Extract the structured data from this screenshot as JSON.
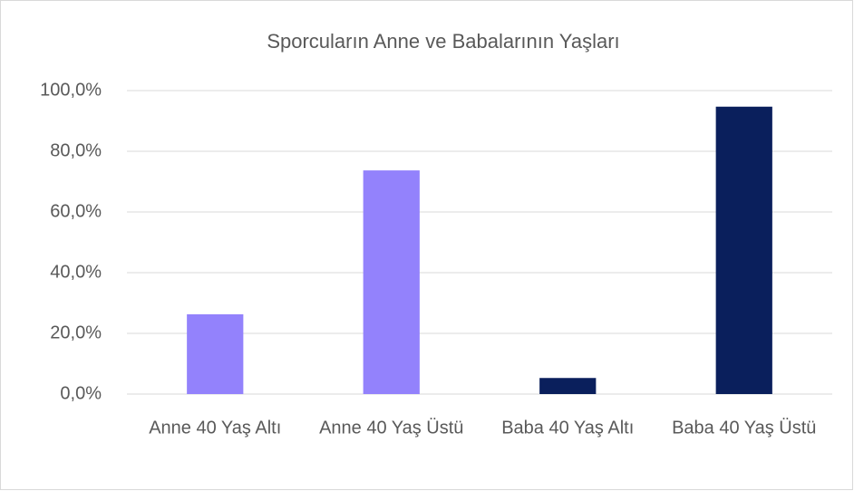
{
  "chart_data": {
    "type": "bar",
    "title": "Sporcuların Anne ve Babalarının Yaşları",
    "categories": [
      "Anne 40 Yaş Altı",
      "Anne 40 Yaş Üstü",
      "Baba 40 Yaş Altı",
      "Baba 40 Yaş Üstü"
    ],
    "values": [
      26.3,
      73.7,
      5.3,
      94.7
    ],
    "colors": [
      "#9382fc",
      "#9382fc",
      "#0a1f5c",
      "#0a1f5c"
    ],
    "ylim": [
      0,
      100
    ],
    "yticks": [
      {
        "value": 0,
        "label": "0,0%"
      },
      {
        "value": 20,
        "label": "20,0%"
      },
      {
        "value": 40,
        "label": "40,0%"
      },
      {
        "value": 60,
        "label": "60,0%"
      },
      {
        "value": 80,
        "label": "80,0%"
      },
      {
        "value": 100,
        "label": "100,0%"
      }
    ],
    "grid": true
  }
}
